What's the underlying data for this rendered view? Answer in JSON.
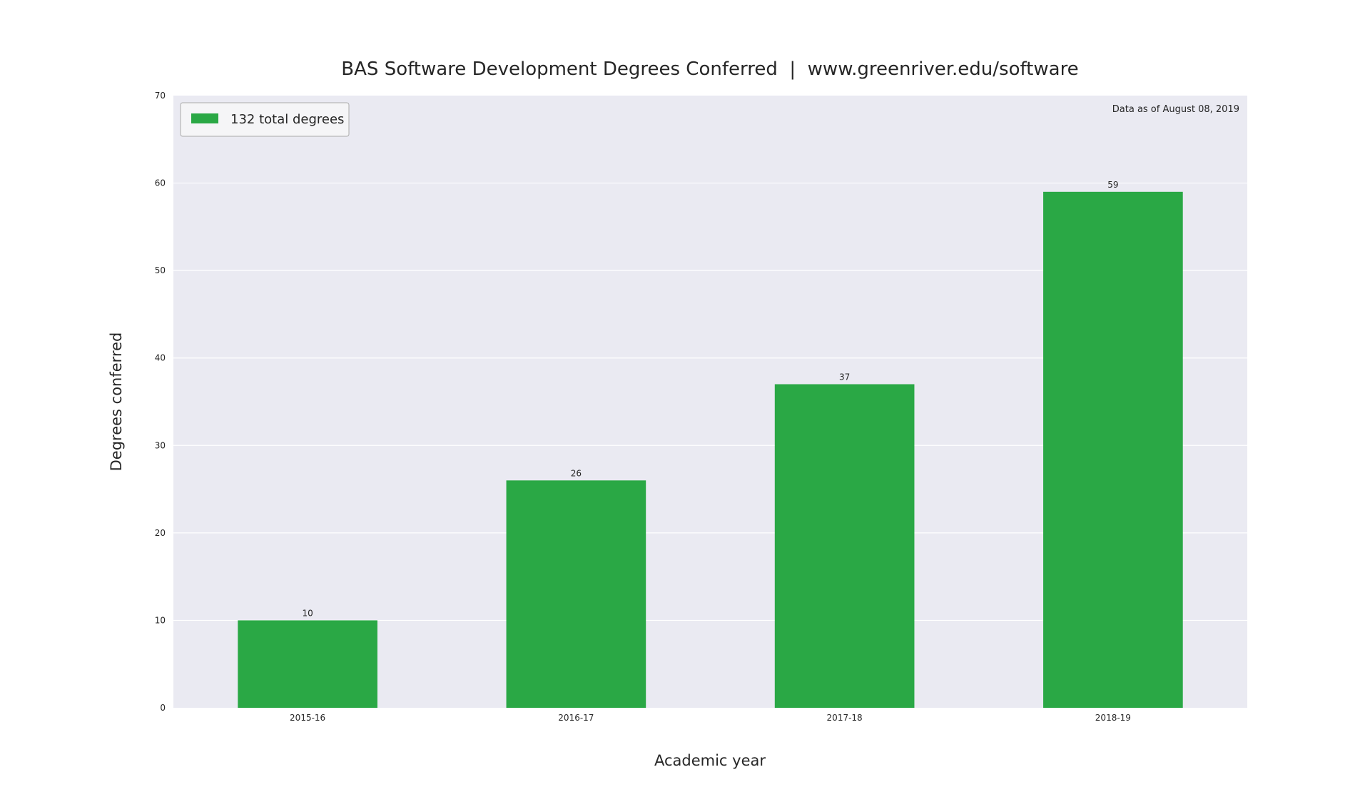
{
  "chart_data": {
    "type": "bar",
    "title": "BAS Software Development Degrees Conferred  |  www.greenriver.edu/software",
    "xlabel": "Academic year",
    "ylabel": "Degrees conferred",
    "categories": [
      "2015-16",
      "2016-17",
      "2017-18",
      "2018-19"
    ],
    "values": [
      10,
      26,
      37,
      59
    ],
    "value_labels": [
      "10",
      "26",
      "37",
      "59"
    ],
    "ylim": [
      0,
      70
    ],
    "yticks": [
      0,
      10,
      20,
      30,
      40,
      50,
      60,
      70
    ],
    "ytick_labels": [
      "0",
      "10",
      "20",
      "30",
      "40",
      "50",
      "60",
      "70"
    ],
    "grid": true,
    "legend": {
      "label": "132 total degrees",
      "position": "top-left"
    },
    "annotation": "Data as of August 08, 2019",
    "colors": {
      "bar": "#2aa845",
      "plot_bg": "#eaeaf2",
      "grid": "#ffffff",
      "text": "#262626",
      "legend_bg": "#f5f5f7",
      "legend_border": "#aaaaaa"
    }
  }
}
